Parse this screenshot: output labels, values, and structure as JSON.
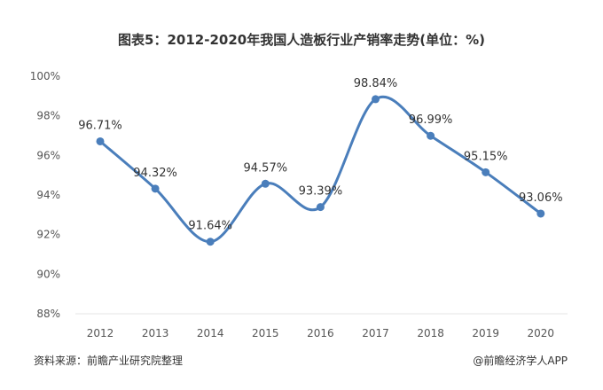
{
  "chart_data": {
    "type": "line",
    "title": "图表5：2012-2020年我国人造板行业产销率走势(单位：%)",
    "categories": [
      "2012",
      "2013",
      "2014",
      "2015",
      "2016",
      "2017",
      "2018",
      "2019",
      "2020"
    ],
    "values": [
      96.71,
      94.32,
      91.64,
      94.57,
      93.39,
      98.84,
      96.99,
      95.15,
      93.06
    ],
    "data_labels": [
      "96.71%",
      "94.32%",
      "91.64%",
      "94.57%",
      "93.39%",
      "98.84%",
      "96.99%",
      "95.15%",
      "93.06%"
    ],
    "y_ticks": [
      "88%",
      "90%",
      "92%",
      "94%",
      "96%",
      "98%",
      "100%"
    ],
    "ylim": [
      88,
      100
    ],
    "smooth": true,
    "grid": false,
    "line_color": "#4a7ebb"
  },
  "footer": {
    "source": "资料来源：前瞻产业研究院整理",
    "credit": "@前瞻经济学人APP"
  }
}
